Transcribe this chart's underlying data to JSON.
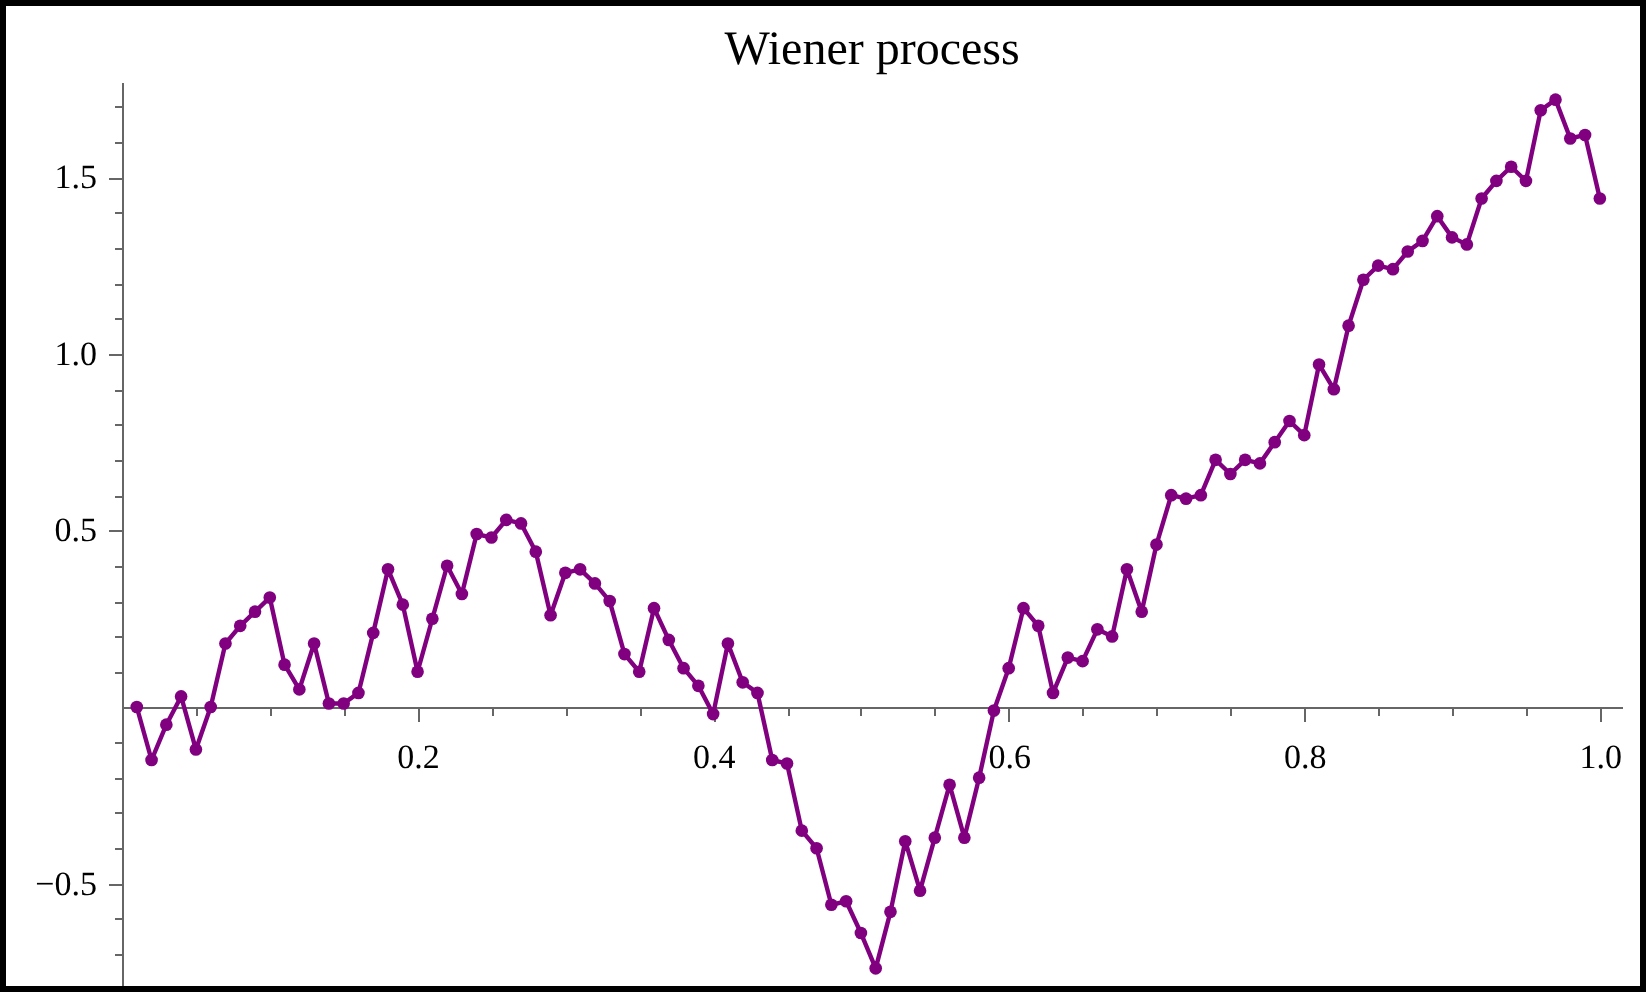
{
  "chart_data": {
    "type": "line",
    "title": "Wiener process",
    "x": [
      0.01,
      0.02,
      0.03,
      0.04,
      0.05,
      0.06,
      0.07,
      0.08,
      0.09,
      0.1,
      0.11,
      0.12,
      0.13,
      0.14,
      0.15,
      0.16,
      0.17,
      0.18,
      0.19,
      0.2,
      0.21,
      0.22,
      0.23,
      0.24,
      0.25,
      0.26,
      0.27,
      0.28,
      0.29,
      0.3,
      0.31,
      0.32,
      0.33,
      0.34,
      0.35,
      0.36,
      0.37,
      0.38,
      0.39,
      0.4,
      0.41,
      0.42,
      0.43,
      0.44,
      0.45,
      0.46,
      0.47,
      0.48,
      0.49,
      0.5,
      0.51,
      0.52,
      0.53,
      0.54,
      0.55,
      0.56,
      0.57,
      0.58,
      0.59,
      0.6,
      0.61,
      0.62,
      0.63,
      0.64,
      0.65,
      0.66,
      0.67,
      0.68,
      0.69,
      0.7,
      0.71,
      0.72,
      0.73,
      0.74,
      0.75,
      0.76,
      0.77,
      0.78,
      0.79,
      0.8,
      0.81,
      0.82,
      0.83,
      0.84,
      0.85,
      0.86,
      0.87,
      0.88,
      0.89,
      0.9,
      0.91,
      0.92,
      0.93,
      0.94,
      0.95,
      0.96,
      0.97,
      0.98,
      0.99,
      1.0
    ],
    "series": [
      {
        "color": "#800080",
        "values": [
          0,
          -0.15,
          -0.05,
          0.03,
          -0.12,
          0,
          0.18,
          0.23,
          0.27,
          0.31,
          0.12,
          0.05,
          0.18,
          0.01,
          0.01,
          0.04,
          0.21,
          0.39,
          0.29,
          0.1,
          0.25,
          0.4,
          0.32,
          0.49,
          0.48,
          0.53,
          0.52,
          0.44,
          0.26,
          0.38,
          0.39,
          0.35,
          0.3,
          0.15,
          0.1,
          0.28,
          0.19,
          0.11,
          0.06,
          -0.02,
          0.18,
          0.07,
          0.04,
          -0.15,
          -0.16,
          -0.35,
          -0.4,
          -0.56,
          -0.55,
          -0.64,
          -0.74,
          -0.58,
          -0.38,
          -0.52,
          -0.37,
          -0.22,
          -0.37,
          -0.2,
          -0.01,
          0.11,
          0.28,
          0.23,
          0.04,
          0.14,
          0.13,
          0.22,
          0.2,
          0.39,
          0.27,
          0.46,
          0.6,
          0.59,
          0.6,
          0.7,
          0.66,
          0.7,
          0.69,
          0.75,
          0.81,
          0.77,
          0.97,
          0.9,
          1.08,
          1.21,
          1.25,
          1.24,
          1.29,
          1.32,
          1.39,
          1.33,
          1.31,
          1.44,
          1.49,
          1.53,
          1.49,
          1.69,
          1.72,
          1.61,
          1.62,
          1.44
        ]
      }
    ],
    "xlim": [
      0,
      1.015
    ],
    "ylim": [
      -0.79,
      1.77
    ],
    "xticks": [
      {
        "value": 0.05,
        "label": null
      },
      {
        "value": 0.1,
        "label": null
      },
      {
        "value": 0.15,
        "label": null
      },
      0.2,
      {
        "value": 0.25,
        "label": null
      },
      {
        "value": 0.3,
        "label": null
      },
      {
        "value": 0.35,
        "label": null
      },
      0.4,
      {
        "value": 0.45,
        "label": null
      },
      {
        "value": 0.5,
        "label": null
      },
      {
        "value": 0.55,
        "label": null
      },
      0.6,
      {
        "value": 0.65,
        "label": null
      },
      {
        "value": 0.7,
        "label": null
      },
      {
        "value": 0.75,
        "label": null
      },
      0.8,
      {
        "value": 0.85,
        "label": null
      },
      {
        "value": 0.9,
        "label": null
      },
      {
        "value": 0.95,
        "label": null
      },
      {
        "value": 1,
        "label": "1.0"
      }
    ],
    "yticks": [
      {
        "value": -0.7,
        "label": null
      },
      {
        "value": -0.6,
        "label": null
      },
      {
        "value": -0.5,
        "label": "−0.5"
      },
      {
        "value": -0.4,
        "label": null
      },
      {
        "value": -0.3,
        "label": null
      },
      {
        "value": -0.2,
        "label": null
      },
      {
        "value": -0.1,
        "label": null
      },
      {
        "value": 0.1,
        "label": null
      },
      {
        "value": 0.2,
        "label": null
      },
      {
        "value": 0.3,
        "label": null
      },
      {
        "value": 0.4,
        "label": null
      },
      0.5,
      {
        "value": 0.6,
        "label": null
      },
      {
        "value": 0.7,
        "label": null
      },
      {
        "value": 0.8,
        "label": null
      },
      {
        "value": 0.9,
        "label": null
      },
      {
        "value": 1,
        "label": "1.0"
      },
      {
        "value": 1.1,
        "label": null
      },
      {
        "value": 1.2,
        "label": null
      },
      {
        "value": 1.3,
        "label": null
      },
      {
        "value": 1.4,
        "label": null
      },
      1.5,
      {
        "value": 1.6,
        "label": null
      },
      {
        "value": 1.7,
        "label": null
      }
    ],
    "marker": "circle",
    "line_style": "solid"
  }
}
